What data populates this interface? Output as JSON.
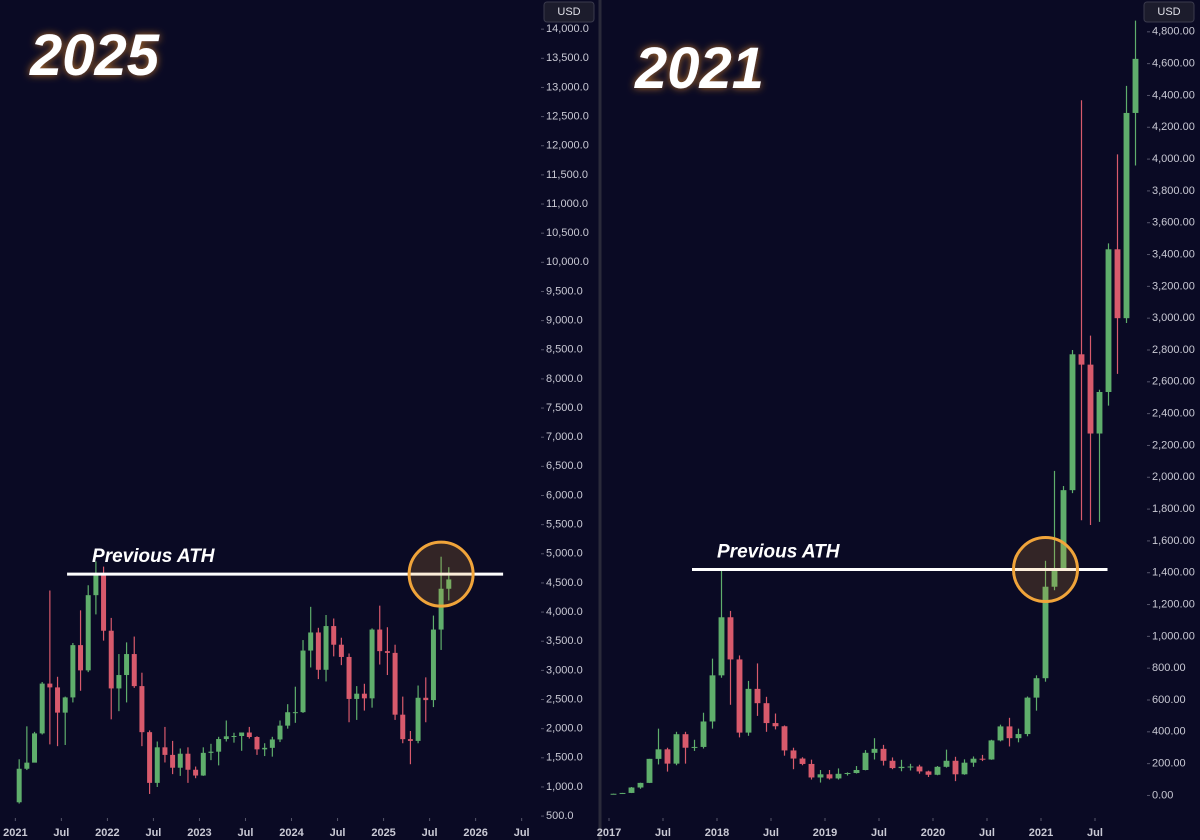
{
  "chart_data": [
    {
      "type": "candlestick",
      "title": "2025",
      "currency": "USD",
      "annotation": "Previous ATH",
      "ath": 4650,
      "up_color": "#5fae6c",
      "down_color": "#d85a6c",
      "xlim": [
        "2020-11",
        "2026-09"
      ],
      "xticks": [
        {
          "value": "2021-01",
          "label": "2021"
        },
        {
          "value": "2021-07",
          "label": "Jul"
        },
        {
          "value": "2022-01",
          "label": "2022"
        },
        {
          "value": "2022-07",
          "label": "Jul"
        },
        {
          "value": "2023-01",
          "label": "2023"
        },
        {
          "value": "2023-07",
          "label": "Jul"
        },
        {
          "value": "2024-01",
          "label": "2024"
        },
        {
          "value": "2024-07",
          "label": "Jul"
        },
        {
          "value": "2025-01",
          "label": "2025"
        },
        {
          "value": "2025-07",
          "label": "Jul"
        },
        {
          "value": "2026-01",
          "label": "2026"
        },
        {
          "value": "2026-07",
          "label": "Jul"
        }
      ],
      "ylim": [
        90,
        14500
      ],
      "yticks": [
        {
          "value": 500,
          "label": "500.0"
        },
        {
          "value": 1000,
          "label": "1,000.0"
        },
        {
          "value": 1500,
          "label": "1,500.0"
        },
        {
          "value": 2000,
          "label": "2,000.0"
        },
        {
          "value": 2500,
          "label": "2,500.0"
        },
        {
          "value": 3000,
          "label": "3,000.0"
        },
        {
          "value": 3500,
          "label": "3,500.0"
        },
        {
          "value": 4000,
          "label": "4,000.0"
        },
        {
          "value": 4500,
          "label": "4,500.0"
        },
        {
          "value": 5000,
          "label": "5,000.0"
        },
        {
          "value": 5500,
          "label": "5,500.0"
        },
        {
          "value": 6000,
          "label": "6,000.0"
        },
        {
          "value": 6500,
          "label": "6,500.0"
        },
        {
          "value": 7000,
          "label": "7,000.0"
        },
        {
          "value": 7500,
          "label": "7,500.0"
        },
        {
          "value": 8000,
          "label": "8,000.0"
        },
        {
          "value": 8500,
          "label": "8,500.0"
        },
        {
          "value": 9000,
          "label": "9,000.0"
        },
        {
          "value": 9500,
          "label": "9,500.0"
        },
        {
          "value": 10000,
          "label": "10,000.0"
        },
        {
          "value": 10500,
          "label": "10,500.0"
        },
        {
          "value": 11000,
          "label": "11,000.0"
        },
        {
          "value": 11500,
          "label": "11,500.0"
        },
        {
          "value": 12000,
          "label": "12,000.0"
        },
        {
          "value": 12500,
          "label": "12,500.0"
        },
        {
          "value": 13000,
          "label": "13,000.0"
        },
        {
          "value": 13500,
          "label": "13,500.0"
        },
        {
          "value": 14000,
          "label": "14,000.0"
        }
      ],
      "x": [
        "2021-01",
        "2021-02",
        "2021-03",
        "2021-04",
        "2021-05",
        "2021-06",
        "2021-07",
        "2021-08",
        "2021-09",
        "2021-10",
        "2021-11",
        "2021-12",
        "2022-01",
        "2022-02",
        "2022-03",
        "2022-04",
        "2022-05",
        "2022-06",
        "2022-07",
        "2022-08",
        "2022-09",
        "2022-10",
        "2022-11",
        "2022-12",
        "2023-01",
        "2023-02",
        "2023-03",
        "2023-04",
        "2023-05",
        "2023-06",
        "2023-07",
        "2023-08",
        "2023-09",
        "2023-10",
        "2023-11",
        "2023-12",
        "2024-01",
        "2024-02",
        "2024-03",
        "2024-04",
        "2024-05",
        "2024-06",
        "2024-07",
        "2024-08",
        "2024-09",
        "2024-10",
        "2024-11",
        "2024-12",
        "2025-01",
        "2025-02",
        "2025-03",
        "2025-04",
        "2025-05",
        "2025-06",
        "2025-07",
        "2025-08",
        "2025-09"
      ],
      "open": [
        737,
        1312,
        1417,
        1919,
        2773,
        2708,
        2275,
        2536,
        3433,
        3000,
        4290,
        4630,
        3680,
        2690,
        2920,
        3280,
        2730,
        1940,
        1070,
        1680,
        1550,
        1330,
        1570,
        1295,
        1196,
        1585,
        1605,
        1822,
        1869,
        1874,
        1934,
        1857,
        1645,
        1671,
        1815,
        2052,
        2282,
        2283,
        3340,
        3650,
        3010,
        3760,
        3440,
        3230,
        2510,
        2600,
        2520,
        3700,
        3330,
        3300,
        2240,
        1820,
        1790,
        2530,
        2490,
        3700,
        4400
      ],
      "high": [
        1475,
        2040,
        1945,
        2800,
        4370,
        2890,
        2550,
        3470,
        4030,
        4460,
        4870,
        4780,
        3900,
        3280,
        3480,
        3580,
        2960,
        1970,
        1780,
        2030,
        1790,
        1660,
        1680,
        1350,
        1680,
        1740,
        1860,
        2140,
        1930,
        1930,
        2030,
        1870,
        1750,
        1860,
        2140,
        2420,
        2720,
        3520,
        4090,
        3730,
        3950,
        3890,
        3560,
        3290,
        2730,
        2770,
        3720,
        4110,
        3740,
        3440,
        2550,
        1960,
        2740,
        2880,
        3940,
        4950,
        4770
      ],
      "low": [
        715,
        1290,
        1420,
        1900,
        1730,
        1700,
        1720,
        2450,
        2650,
        2970,
        3960,
        3510,
        2160,
        2300,
        2450,
        2700,
        1700,
        880,
        1000,
        1420,
        1220,
        1190,
        1070,
        1150,
        1190,
        1460,
        1370,
        1780,
        1760,
        1620,
        1830,
        1550,
        1530,
        1520,
        1770,
        2000,
        2100,
        2270,
        3050,
        2850,
        2810,
        3240,
        3090,
        2110,
        2150,
        2310,
        2360,
        3100,
        2920,
        2150,
        1750,
        1390,
        1750,
        2110,
        2370,
        3350,
        4200
      ],
      "close": [
        1312,
        1417,
        1919,
        2773,
        2708,
        2275,
        2536,
        3433,
        3000,
        4290,
        4630,
        3680,
        2690,
        2920,
        3280,
        2730,
        1940,
        1070,
        1680,
        1550,
        1330,
        1570,
        1295,
        1196,
        1585,
        1605,
        1822,
        1869,
        1874,
        1934,
        1857,
        1645,
        1671,
        1815,
        2052,
        2282,
        2283,
        3340,
        3650,
        3010,
        3760,
        3440,
        3230,
        2510,
        2600,
        2520,
        3700,
        3330,
        3300,
        2240,
        1820,
        1790,
        2530,
        2490,
        3700,
        4400,
        4560
      ]
    },
    {
      "type": "candlestick",
      "title": "2021",
      "currency": "USD",
      "annotation": "Previous ATH",
      "ath": 1420,
      "up_color": "#5fae6c",
      "down_color": "#d85a6c",
      "xlim": [
        "2016-12",
        "2021-12"
      ],
      "xticks": [
        {
          "value": "2017-01",
          "label": "2017"
        },
        {
          "value": "2017-07",
          "label": "Jul"
        },
        {
          "value": "2018-01",
          "label": "2018"
        },
        {
          "value": "2018-07",
          "label": "Jul"
        },
        {
          "value": "2019-01",
          "label": "2019"
        },
        {
          "value": "2019-07",
          "label": "Jul"
        },
        {
          "value": "2020-01",
          "label": "2020"
        },
        {
          "value": "2020-07",
          "label": "Jul"
        },
        {
          "value": "2021-01",
          "label": "2021"
        },
        {
          "value": "2021-07",
          "label": "Jul"
        }
      ],
      "ylim": [
        -280,
        5000
      ],
      "yticks": [
        {
          "value": 0,
          "label": "0.00"
        },
        {
          "value": 200,
          "label": "200.00"
        },
        {
          "value": 400,
          "label": "400.00"
        },
        {
          "value": 600,
          "label": "600.00"
        },
        {
          "value": 800,
          "label": "800.00"
        },
        {
          "value": 1000,
          "label": "1,000.00"
        },
        {
          "value": 1200,
          "label": "1,200.00"
        },
        {
          "value": 1400,
          "label": "1,400.00"
        },
        {
          "value": 1600,
          "label": "1,600.00"
        },
        {
          "value": 1800,
          "label": "1,800.00"
        },
        {
          "value": 2000,
          "label": "2,000.00"
        },
        {
          "value": 2200,
          "label": "2,200.00"
        },
        {
          "value": 2400,
          "label": "2,400.00"
        },
        {
          "value": 2600,
          "label": "2,600.00"
        },
        {
          "value": 2800,
          "label": "2,800.00"
        },
        {
          "value": 3000,
          "label": "3,000.00"
        },
        {
          "value": 3200,
          "label": "3,200.00"
        },
        {
          "value": 3400,
          "label": "3,400.00"
        },
        {
          "value": 3600,
          "label": "3,600.00"
        },
        {
          "value": 3800,
          "label": "3,800.00"
        },
        {
          "value": 4000,
          "label": "4,000.00"
        },
        {
          "value": 4200,
          "label": "4,200.00"
        },
        {
          "value": 4400,
          "label": "4,400.00"
        },
        {
          "value": 4600,
          "label": "4,600.00"
        },
        {
          "value": 4800,
          "label": "4,800.00"
        }
      ],
      "x": [
        "2017-01",
        "2017-02",
        "2017-03",
        "2017-04",
        "2017-05",
        "2017-06",
        "2017-07",
        "2017-08",
        "2017-09",
        "2017-10",
        "2017-11",
        "2017-12",
        "2018-01",
        "2018-02",
        "2018-03",
        "2018-04",
        "2018-05",
        "2018-06",
        "2018-07",
        "2018-08",
        "2018-09",
        "2018-10",
        "2018-11",
        "2018-12",
        "2019-01",
        "2019-02",
        "2019-03",
        "2019-04",
        "2019-05",
        "2019-06",
        "2019-07",
        "2019-08",
        "2019-09",
        "2019-10",
        "2019-11",
        "2019-12",
        "2020-01",
        "2020-02",
        "2020-03",
        "2020-04",
        "2020-05",
        "2020-06",
        "2020-07",
        "2020-08",
        "2020-09",
        "2020-10",
        "2020-11",
        "2020-12",
        "2021-01",
        "2021-02",
        "2021-03",
        "2021-04",
        "2021-05",
        "2021-06",
        "2021-07",
        "2021-08",
        "2021-09",
        "2021-10",
        "2021-11"
      ],
      "open": [
        8,
        10.7,
        15.8,
        50,
        79,
        230,
        290,
        200,
        385,
        300,
        305,
        465,
        755,
        1120,
        855,
        395,
        670,
        580,
        455,
        435,
        283,
        232,
        198,
        113,
        133,
        107,
        136,
        141,
        160,
        268,
        293,
        218,
        172,
        180,
        182,
        151,
        130,
        180,
        218,
        133,
        206,
        231,
        226,
        346,
        434,
        360,
        386,
        615,
        737,
        1312,
        1417,
        1919,
        2773,
        2708,
        2275,
        2536,
        3433,
        3000,
        4290
      ],
      "high": [
        11,
        16,
        53,
        80,
        230,
        420,
        300,
        400,
        400,
        350,
        520,
        860,
        1420,
        1160,
        880,
        720,
        830,
        620,
        515,
        440,
        300,
        240,
        225,
        160,
        160,
        170,
        145,
        185,
        285,
        360,
        318,
        239,
        224,
        199,
        193,
        156,
        185,
        288,
        243,
        227,
        245,
        255,
        350,
        445,
        488,
        420,
        622,
        755,
        1475,
        2040,
        1945,
        2800,
        4370,
        2890,
        2550,
        3470,
        4030,
        4460,
        4870
      ],
      "low": [
        8,
        10.5,
        15,
        42,
        78,
        195,
        150,
        190,
        200,
        280,
        295,
        420,
        740,
        570,
        365,
        375,
        500,
        400,
        415,
        250,
        165,
        190,
        100,
        81,
        100,
        100,
        125,
        138,
        158,
        226,
        188,
        165,
        152,
        157,
        137,
        116,
        127,
        175,
        90,
        130,
        180,
        216,
        224,
        340,
        308,
        334,
        372,
        533,
        715,
        1290,
        1420,
        1900,
        1730,
        1700,
        1720,
        2450,
        2650,
        2970,
        3960
      ],
      "close": [
        10.7,
        15.8,
        50,
        79,
        230,
        290,
        200,
        385,
        300,
        305,
        465,
        755,
        1120,
        855,
        395,
        670,
        580,
        455,
        435,
        283,
        232,
        198,
        113,
        133,
        107,
        136,
        141,
        160,
        268,
        293,
        218,
        172,
        180,
        182,
        151,
        130,
        180,
        218,
        133,
        206,
        231,
        226,
        346,
        434,
        360,
        386,
        615,
        737,
        1312,
        1417,
        1919,
        2773,
        2708,
        2275,
        2536,
        3433,
        3000,
        4290,
        4630
      ]
    }
  ]
}
